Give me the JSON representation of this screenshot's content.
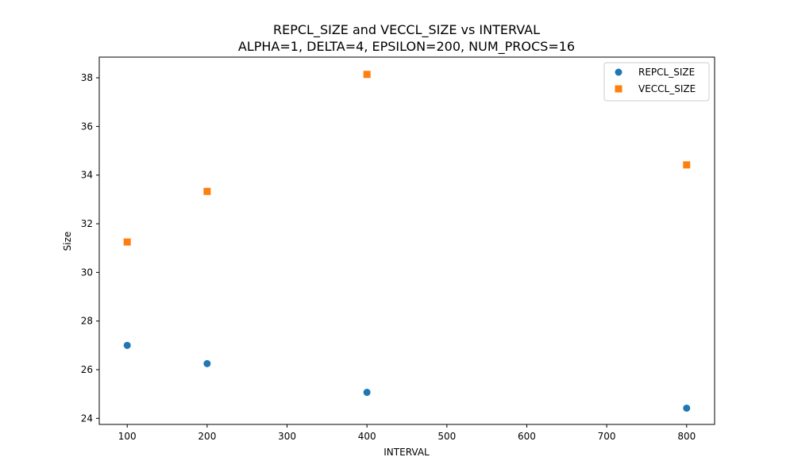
{
  "chart_data": {
    "type": "scatter",
    "title": "REPCL_SIZE and VECCL_SIZE vs INTERVAL",
    "subtitle": "ALPHA=1, DELTA=4, EPSILON=200, NUM_PROCS=16",
    "xlabel": "INTERVAL",
    "ylabel": "Size",
    "xlim": [
      65,
      835
    ],
    "ylim": [
      23.75,
      38.85
    ],
    "xticks": [
      100,
      200,
      300,
      400,
      500,
      600,
      700,
      800
    ],
    "yticks": [
      24,
      26,
      28,
      30,
      32,
      34,
      36,
      38
    ],
    "grid": false,
    "legend_position": "top-right",
    "series": [
      {
        "name": "REPCL_SIZE",
        "marker": "circle",
        "color": "#1f77b4",
        "x": [
          100,
          200,
          400,
          800
        ],
        "y": [
          27.0,
          26.25,
          25.07,
          24.42
        ]
      },
      {
        "name": "VECCL_SIZE",
        "marker": "square",
        "color": "#ff7f0e",
        "x": [
          100,
          200,
          400,
          800
        ],
        "y": [
          31.25,
          33.33,
          38.14,
          34.42
        ]
      }
    ]
  }
}
